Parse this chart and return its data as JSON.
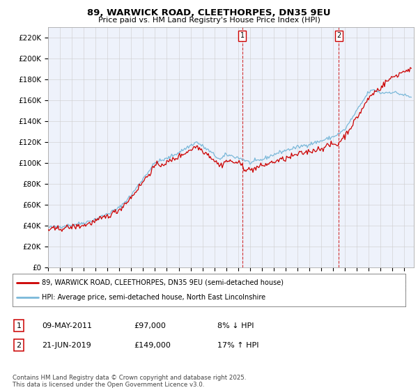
{
  "title": "89, WARWICK ROAD, CLEETHORPES, DN35 9EU",
  "subtitle": "Price paid vs. HM Land Registry's House Price Index (HPI)",
  "ylabel_ticks": [
    "£0",
    "£20K",
    "£40K",
    "£60K",
    "£80K",
    "£100K",
    "£120K",
    "£140K",
    "£160K",
    "£180K",
    "£200K",
    "£220K"
  ],
  "ylim": [
    0,
    230000
  ],
  "yticks": [
    0,
    20000,
    40000,
    60000,
    80000,
    100000,
    120000,
    140000,
    160000,
    180000,
    200000,
    220000
  ],
  "xlim_start": 1995.0,
  "xlim_end": 2025.8,
  "hpi_color": "#7ab8d9",
  "price_color": "#cc0000",
  "marker1_x": 2011.36,
  "marker2_x": 2019.47,
  "legend_line1": "89, WARWICK ROAD, CLEETHORPES, DN35 9EU (semi-detached house)",
  "legend_line2": "HPI: Average price, semi-detached house, North East Lincolnshire",
  "table_row1": [
    "1",
    "09-MAY-2011",
    "£97,000",
    "8% ↓ HPI"
  ],
  "table_row2": [
    "2",
    "21-JUN-2019",
    "£149,000",
    "17% ↑ HPI"
  ],
  "footer": "Contains HM Land Registry data © Crown copyright and database right 2025.\nThis data is licensed under the Open Government Licence v3.0.",
  "plot_bg_color": "#eef2fb",
  "fig_bg_color": "#ffffff"
}
